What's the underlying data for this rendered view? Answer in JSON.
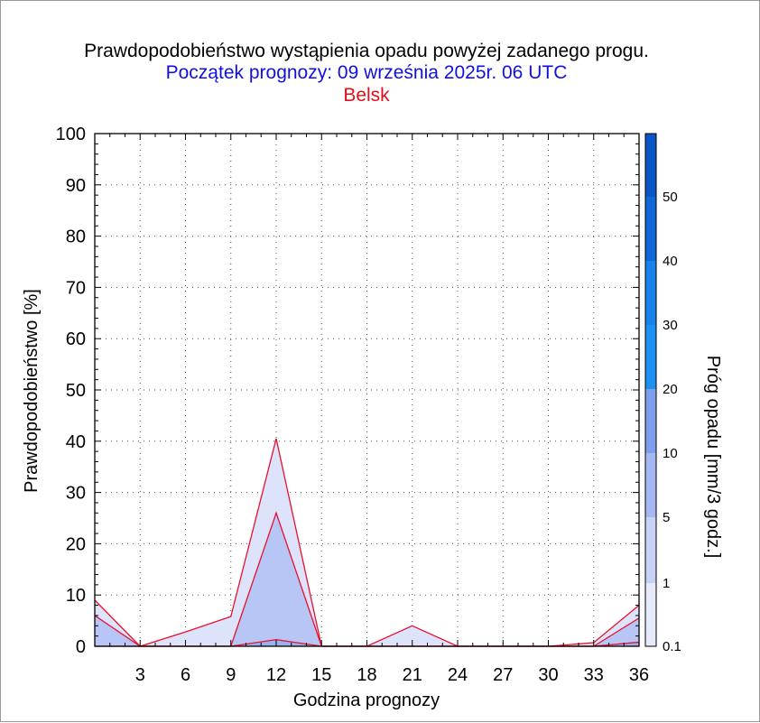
{
  "chart_data": {
    "type": "area",
    "title": "Prawdopodobieństwo wystąpienia opadu powyżej zadanego progu.",
    "subtitle": "Początek prognozy: 09 września 2025r. 06 UTC",
    "location": "Belsk",
    "xlabel": "Godzina prognozy",
    "ylabel": "Prawdopodobieństwo [%]",
    "xlim": [
      0,
      36
    ],
    "ylim": [
      0,
      100
    ],
    "x_ticks": [
      3,
      6,
      9,
      12,
      15,
      18,
      21,
      24,
      27,
      30,
      33,
      36
    ],
    "y_ticks": [
      0,
      10,
      20,
      30,
      40,
      50,
      60,
      70,
      80,
      90,
      100
    ],
    "grid": true,
    "x": [
      0,
      3,
      6,
      9,
      12,
      15,
      18,
      21,
      24,
      27,
      30,
      33,
      36
    ],
    "series": [
      {
        "threshold": "0.1",
        "color": "#dde3fb",
        "values": [
          9,
          0,
          2.8,
          5.8,
          40.5,
          0,
          0,
          4,
          0,
          0,
          0,
          0.7,
          8
        ]
      },
      {
        "threshold": "1",
        "color": "#b7c6f5",
        "values": [
          6,
          0,
          0,
          0,
          26,
          0,
          0,
          0,
          0,
          0,
          0,
          0,
          5.5
        ]
      },
      {
        "threshold": "5",
        "color": "#9ab0ef",
        "values": [
          0,
          0,
          0,
          0,
          1.3,
          0,
          0,
          0,
          0,
          0,
          0,
          0,
          0.8
        ]
      }
    ],
    "colorbar": {
      "label": "Próg opadu [mm/3 godz.]",
      "labels": [
        "0.1",
        "1",
        "5",
        "10",
        "20",
        "30",
        "40",
        "50"
      ],
      "colors": [
        "#e6ebfb",
        "#c6d3f7",
        "#a4b9f2",
        "#7e9fee",
        "#1d91f2",
        "#1783eb",
        "#1067d8",
        "#0a56c6",
        "#053fa5"
      ]
    }
  }
}
